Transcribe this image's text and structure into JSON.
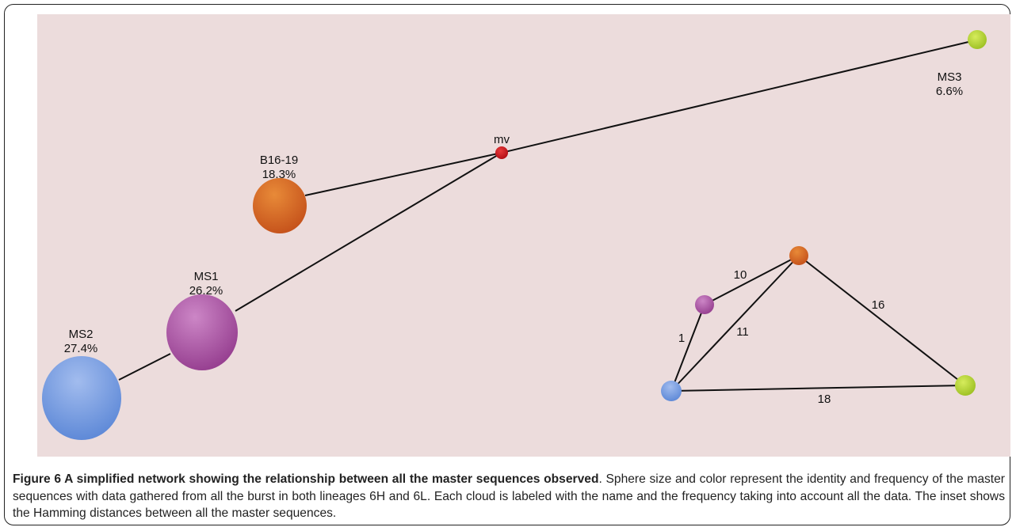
{
  "nodes": [
    {
      "label": "MS3",
      "value": "6.6%"
    },
    {
      "label": "mv"
    },
    {
      "label": "B16-19",
      "value": "18.3%"
    },
    {
      "label": "MS1",
      "value": "26.2%"
    },
    {
      "label": "MS2",
      "value": "27.4%"
    }
  ],
  "inset": {
    "edges": [
      {
        "label": "10"
      },
      {
        "label": "1"
      },
      {
        "label": "11"
      },
      {
        "label": "16"
      },
      {
        "label": "18"
      }
    ]
  },
  "caption": {
    "title": "Figure 6 A simplified network showing the relationship between all the master sequences observed",
    "text": ". Sphere size and color represent the identity and frequency of the master sequences with data gathered from all the burst in both lineages 6H and 6L. Each cloud is labeled with the name and the frequency taking into account all the data. The inset shows the Hamming distances between all the master sequences."
  }
}
